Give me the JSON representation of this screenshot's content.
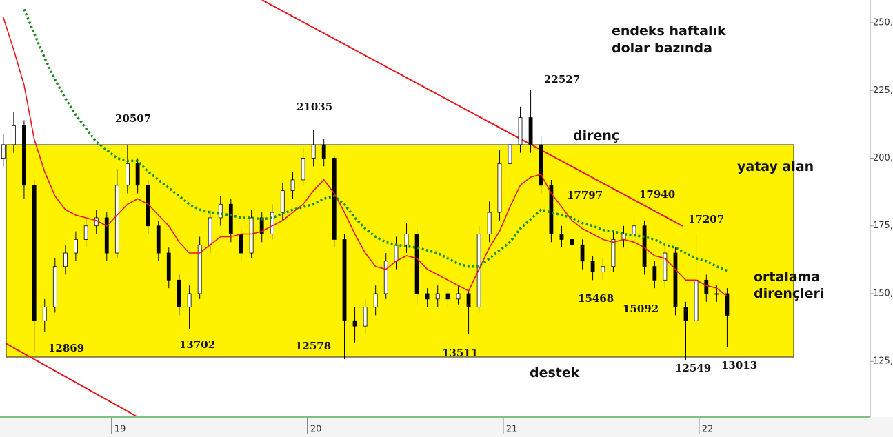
{
  "chart_data": {
    "type": "candlestick",
    "x": [
      18.447,
      18.5,
      18.553,
      18.605,
      18.658,
      18.711,
      18.764,
      18.817,
      18.869,
      18.922,
      18.975,
      19.028,
      19.081,
      19.133,
      19.186,
      19.239,
      19.292,
      19.345,
      19.397,
      19.45,
      19.503,
      19.556,
      19.609,
      19.661,
      19.714,
      19.767,
      19.82,
      19.873,
      19.925,
      19.978,
      20.031,
      20.084,
      20.137,
      20.189,
      20.242,
      20.295,
      20.348,
      20.401,
      20.453,
      20.506,
      20.559,
      20.612,
      20.665,
      20.717,
      20.77,
      20.823,
      20.876,
      20.929,
      20.981,
      21.034,
      21.087,
      21.14,
      21.193,
      21.245,
      21.298,
      21.351,
      21.404,
      21.457,
      21.509,
      21.562,
      21.615,
      21.668,
      21.721,
      21.773,
      21.826,
      21.879,
      21.932,
      21.985,
      22.037,
      22.09,
      22.143
    ],
    "open": [
      200,
      205,
      212,
      190,
      140,
      145,
      160,
      165,
      170,
      175,
      178,
      165,
      190,
      198,
      190,
      175,
      165,
      155,
      145,
      150,
      168,
      178,
      183,
      172,
      165,
      178,
      172,
      180,
      188,
      192,
      200,
      205,
      200,
      170,
      140,
      138,
      145,
      150,
      162,
      168,
      172,
      150,
      148,
      150,
      148,
      150,
      145,
      172,
      180,
      198,
      205,
      215,
      205,
      190,
      172,
      170,
      168,
      162,
      158,
      160,
      170,
      172,
      175,
      160,
      155,
      165,
      145,
      140,
      155,
      150,
      150
    ],
    "high": [
      209,
      217,
      214,
      192,
      148,
      163,
      168,
      173,
      178,
      181,
      180,
      196,
      205.07,
      200,
      192,
      177,
      167,
      157,
      153,
      171,
      181,
      186,
      185,
      174,
      181,
      180,
      183,
      191,
      195,
      204,
      210.35,
      207,
      201,
      172,
      145,
      148,
      153,
      165,
      171,
      176,
      174,
      152,
      153,
      152,
      153,
      151,
      175,
      184,
      203,
      210,
      219,
      225.27,
      208,
      192,
      175,
      172,
      170,
      164,
      163,
      173,
      175,
      179,
      177,
      162,
      168,
      167,
      147,
      172.07,
      157,
      153,
      152
    ],
    "low": [
      197,
      202,
      185,
      128.69,
      136,
      143,
      157,
      162,
      167,
      172,
      162,
      163,
      187,
      187,
      172,
      162,
      152,
      142,
      137.02,
      148,
      165,
      175,
      169,
      162,
      163,
      169,
      170,
      177,
      185,
      190,
      197,
      197,
      167,
      125.78,
      132,
      135,
      142,
      148,
      159,
      165,
      146,
      145,
      145,
      145,
      146,
      135.11,
      143,
      169,
      177,
      195,
      202,
      202,
      187,
      169,
      167,
      165,
      159,
      155,
      155,
      158,
      167,
      170,
      157,
      152,
      152,
      142,
      125.49,
      138,
      147,
      147,
      130.13
    ],
    "close": [
      205,
      212,
      190,
      140,
      145,
      160,
      165,
      170,
      175,
      178,
      165,
      190,
      198,
      190,
      175,
      165,
      155,
      145,
      150,
      168,
      178,
      183,
      172,
      165,
      178,
      172,
      180,
      188,
      192,
      200,
      205,
      200,
      170,
      140,
      138,
      145,
      150,
      162,
      168,
      172,
      150,
      148,
      150,
      148,
      150,
      145,
      172,
      180,
      198,
      205,
      215,
      205,
      190,
      172,
      170,
      168,
      162,
      158,
      160,
      170,
      172,
      175,
      160,
      155,
      165,
      145,
      140,
      155,
      150,
      150,
      142
    ],
    "up_color": "#ffffff",
    "down_color": "#000000",
    "series": [
      {
        "color": "#e8141a",
        "style": "solid",
        "values": [
          252,
          240,
          227,
          207,
          195,
          186,
          181,
          179,
          178,
          177,
          175,
          179,
          183,
          185,
          183,
          179,
          175,
          169,
          165,
          165,
          168,
          171,
          171,
          172,
          172,
          173,
          175,
          177,
          180,
          183,
          188,
          192,
          187,
          180,
          172,
          165,
          160,
          159,
          162,
          164,
          163,
          159,
          157,
          155,
          153,
          151,
          159,
          167,
          173,
          182,
          190,
          193,
          194,
          187,
          182,
          177,
          174,
          172,
          170,
          169,
          170,
          169,
          167,
          164,
          163,
          159,
          155,
          155,
          153,
          152,
          149
        ]
      },
      {
        "color": "#1a8a1a",
        "style": "dotted",
        "values": [
          null,
          null,
          255,
          246,
          237,
          229,
          222,
          216,
          211,
          206,
          203,
          200,
          199,
          199,
          195,
          192,
          189,
          186,
          183,
          181,
          180,
          179.5,
          179,
          178,
          178,
          177.5,
          178,
          179.5,
          181,
          182,
          183,
          185,
          186,
          183,
          178,
          174,
          171,
          169,
          168,
          167.5,
          167,
          166,
          165,
          163,
          161,
          160,
          160,
          163,
          166,
          169,
          174,
          177.5,
          181,
          180,
          179,
          178,
          176,
          175,
          173.5,
          173,
          172,
          171.5,
          171,
          170,
          168,
          167,
          165,
          163,
          162,
          160,
          158.5
        ]
      }
    ],
    "xlim": [
      18.43,
      22.874
    ],
    "ylim": [
      104.7,
      258.4
    ],
    "xticks": [
      19,
      20,
      21,
      22
    ],
    "yticks": [
      {
        "value": 125,
        "label": "125,"
      },
      {
        "value": 150,
        "label": "150,"
      },
      {
        "value": 175,
        "label": "175,"
      },
      {
        "value": 200,
        "label": "200,"
      },
      {
        "value": 225,
        "label": "225,"
      },
      {
        "value": 250,
        "label": "250,"
      }
    ],
    "annotations": [
      "endeks haftalık",
      "dolar bazında",
      "22527",
      "20507",
      "21035",
      "direnç",
      "yatay alan",
      "17797",
      "17940",
      "17207",
      "ortalama",
      "dirençleri",
      "15468",
      "15092",
      "12869",
      "13702",
      "12578",
      "13511",
      "destek",
      "12549",
      "13013"
    ]
  }
}
